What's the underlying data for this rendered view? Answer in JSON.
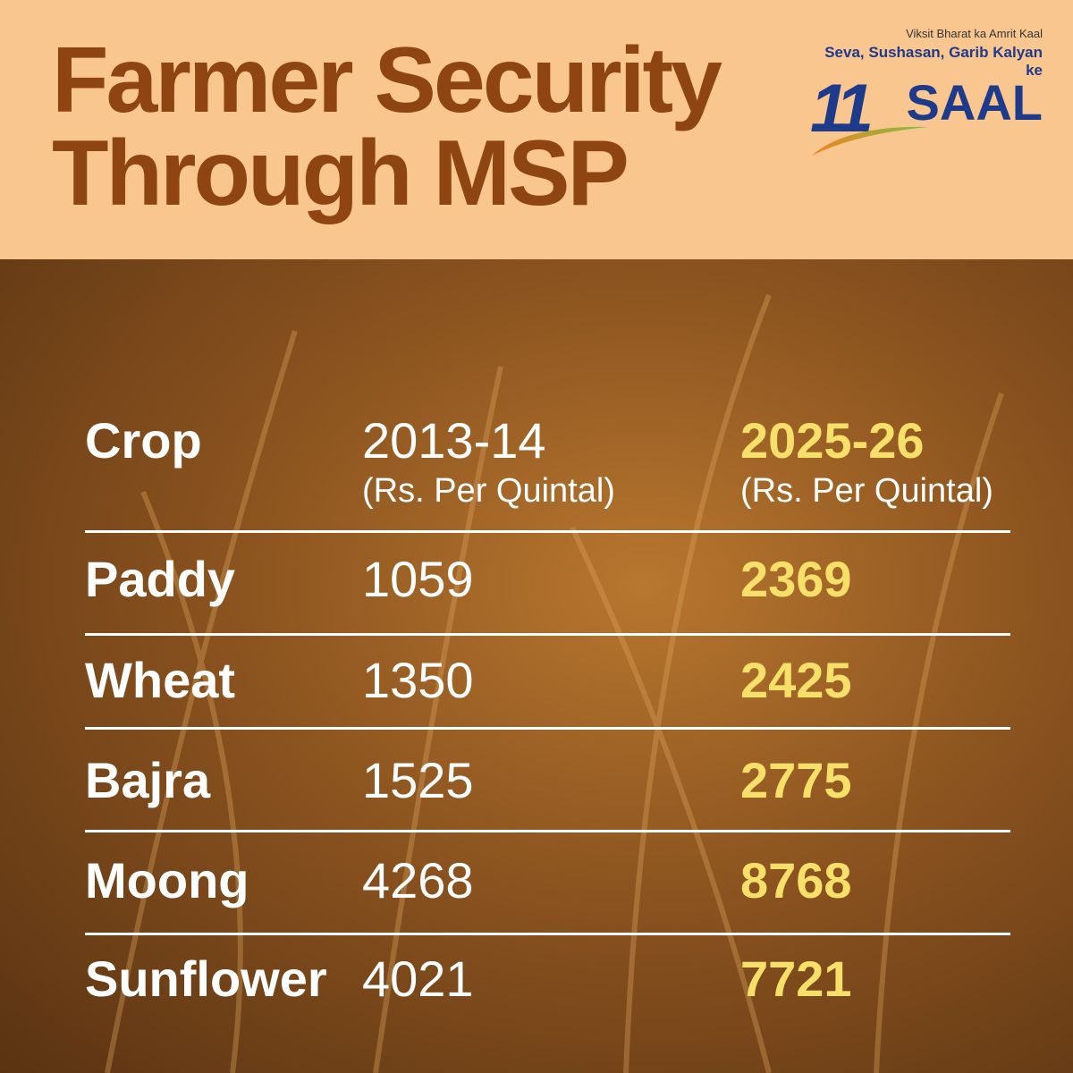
{
  "header": {
    "title": "Farmer Security Through MSP",
    "logo": {
      "tagline": "Viksit Bharat ka Amrit Kaal",
      "subtitle": "Seva, Sushasan, Garib Kalyan ke",
      "number": "11",
      "word": "SAAL"
    }
  },
  "table": {
    "columns": [
      {
        "label": "Crop"
      },
      {
        "label": "2013-14",
        "unit": "(Rs. Per Quintal)"
      },
      {
        "label": "2025-26",
        "unit": "(Rs. Per Quintal)"
      }
    ],
    "rows": [
      [
        "Paddy",
        1059,
        2369
      ],
      [
        "Wheat",
        1350,
        2425
      ],
      [
        "Bajra",
        1525,
        2775
      ],
      [
        "Moong",
        4268,
        8768
      ],
      [
        "Sunflower",
        4021,
        7721
      ]
    ]
  }
}
